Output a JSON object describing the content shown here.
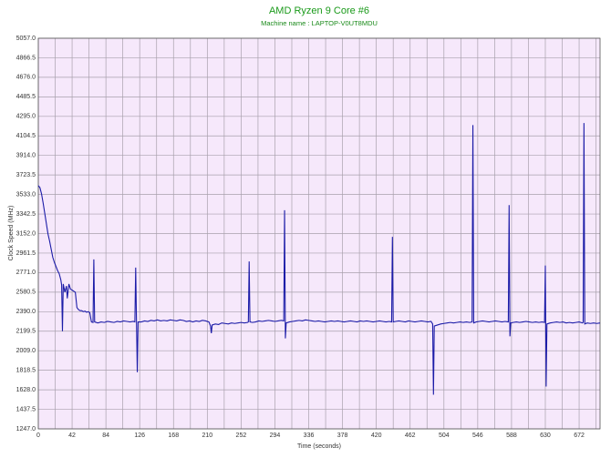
{
  "chart_data": {
    "type": "line",
    "title": "AMD Ryzen 9 Core #6",
    "subtitle": "Machine name : LAPTOP-V0UT8MDU",
    "y_label": "Clock Speed (MHz)",
    "x_label": "Time (seconds)",
    "xlim": [
      0,
      698
    ],
    "ylim": [
      1247,
      5057
    ],
    "xticks": [
      0,
      42,
      84,
      126,
      168,
      210,
      252,
      294,
      336,
      378,
      420,
      462,
      504,
      546,
      588,
      630,
      672
    ],
    "x_minor_grid": [
      21,
      63,
      105,
      147,
      189,
      231,
      273,
      315,
      357,
      399,
      441,
      483,
      525,
      567,
      609,
      651,
      693
    ],
    "yticks": [
      {
        "value": 1247,
        "label": "1247.0"
      },
      {
        "value": 1437.5,
        "label": "1437.5"
      },
      {
        "value": 1628,
        "label": "1628.0"
      },
      {
        "value": 1818.5,
        "label": "1818.5"
      },
      {
        "value": 2009,
        "label": "2009.0"
      },
      {
        "value": 2199.5,
        "label": "2199.5"
      },
      {
        "value": 2390,
        "label": "2390.0"
      },
      {
        "value": 2580.5,
        "label": "2580.5"
      },
      {
        "value": 2771,
        "label": "2771.0"
      },
      {
        "value": 2961.5,
        "label": "2961.5"
      },
      {
        "value": 3152,
        "label": "3152.0"
      },
      {
        "value": 3342.5,
        "label": "3342.5"
      },
      {
        "value": 3533,
        "label": "3533.0"
      },
      {
        "value": 3723.5,
        "label": "3723.5"
      },
      {
        "value": 3914,
        "label": "3914.0"
      },
      {
        "value": 4104.5,
        "label": "4104.5"
      },
      {
        "value": 4295,
        "label": "4295.0"
      },
      {
        "value": 4485.5,
        "label": "4485.5"
      },
      {
        "value": 4676,
        "label": "4676.0"
      },
      {
        "value": 4866.5,
        "label": "4866.5"
      },
      {
        "value": 5057,
        "label": "5057.0"
      }
    ],
    "grid": true,
    "x": [
      0,
      2,
      4,
      6,
      8,
      10,
      12,
      14,
      16,
      18,
      20,
      22,
      24,
      26,
      28,
      29,
      30,
      31,
      33,
      35,
      36,
      38,
      40,
      42,
      44,
      46,
      48,
      50,
      52,
      54,
      56,
      58,
      60,
      62,
      64,
      66,
      68,
      69,
      70,
      74,
      78,
      82,
      86,
      90,
      94,
      98,
      102,
      106,
      110,
      114,
      118,
      120,
      121,
      122,
      123,
      124,
      128,
      132,
      136,
      140,
      144,
      148,
      152,
      156,
      160,
      164,
      168,
      172,
      176,
      180,
      184,
      188,
      192,
      196,
      200,
      204,
      208,
      212,
      214,
      215,
      216,
      220,
      224,
      228,
      232,
      236,
      240,
      244,
      248,
      252,
      256,
      260,
      261,
      262,
      263,
      266,
      270,
      274,
      278,
      282,
      286,
      290,
      294,
      298,
      302,
      305,
      306,
      307,
      308,
      312,
      316,
      320,
      324,
      328,
      332,
      336,
      340,
      344,
      348,
      352,
      356,
      360,
      364,
      368,
      372,
      376,
      380,
      384,
      388,
      392,
      396,
      400,
      404,
      408,
      412,
      416,
      420,
      424,
      428,
      432,
      436,
      439,
      440,
      441,
      444,
      448,
      452,
      456,
      460,
      464,
      468,
      472,
      476,
      480,
      484,
      488,
      490,
      491,
      492,
      496,
      500,
      504,
      508,
      512,
      516,
      520,
      524,
      528,
      532,
      536,
      539,
      540,
      541,
      544,
      548,
      552,
      556,
      560,
      564,
      568,
      572,
      576,
      580,
      584,
      585,
      586,
      587,
      590,
      594,
      598,
      602,
      606,
      610,
      614,
      618,
      622,
      626,
      629,
      630,
      631,
      632,
      636,
      640,
      644,
      648,
      652,
      656,
      660,
      664,
      668,
      672,
      676,
      677,
      678,
      679,
      682,
      686,
      690,
      694,
      698
    ],
    "series": [
      {
        "name": "Core #6",
        "color": "#1c1ca8",
        "values": [
          3620,
          3600,
          3540,
          3450,
          3350,
          3250,
          3150,
          3080,
          3000,
          2920,
          2870,
          2830,
          2790,
          2760,
          2700,
          2650,
          2200,
          2660,
          2580,
          2640,
          2520,
          2660,
          2610,
          2600,
          2590,
          2580,
          2430,
          2410,
          2400,
          2400,
          2390,
          2395,
          2385,
          2390,
          2380,
          2290,
          2285,
          2900,
          2290,
          2280,
          2290,
          2285,
          2295,
          2290,
          2285,
          2295,
          2290,
          2300,
          2295,
          2290,
          2295,
          2290,
          2820,
          2290,
          1800,
          2290,
          2290,
          2300,
          2295,
          2305,
          2300,
          2310,
          2300,
          2305,
          2300,
          2310,
          2305,
          2300,
          2310,
          2305,
          2295,
          2300,
          2290,
          2300,
          2295,
          2305,
          2300,
          2290,
          2250,
          2180,
          2260,
          2270,
          2265,
          2280,
          2275,
          2270,
          2280,
          2275,
          2280,
          2285,
          2280,
          2285,
          2290,
          2880,
          2290,
          2285,
          2290,
          2300,
          2295,
          2300,
          2305,
          2300,
          2295,
          2300,
          2305,
          2300,
          3380,
          2130,
          2280,
          2290,
          2295,
          2300,
          2305,
          2300,
          2310,
          2305,
          2300,
          2295,
          2300,
          2295,
          2290,
          2295,
          2300,
          2295,
          2300,
          2295,
          2290,
          2295,
          2300,
          2295,
          2290,
          2300,
          2295,
          2300,
          2295,
          2290,
          2295,
          2300,
          2295,
          2290,
          2295,
          2290,
          3120,
          2290,
          2295,
          2300,
          2295,
          2290,
          2300,
          2295,
          2290,
          2295,
          2300,
          2295,
          2290,
          2295,
          2270,
          1580,
          2250,
          2260,
          2270,
          2275,
          2280,
          2285,
          2280,
          2285,
          2290,
          2285,
          2290,
          2285,
          2290,
          4210,
          2280,
          2290,
          2295,
          2300,
          2295,
          2290,
          2295,
          2300,
          2295,
          2290,
          2295,
          2290,
          3430,
          2150,
          2280,
          2285,
          2290,
          2285,
          2290,
          2295,
          2290,
          2285,
          2290,
          2285,
          2290,
          2285,
          2840,
          1660,
          2270,
          2280,
          2285,
          2290,
          2285,
          2290,
          2280,
          2285,
          2280,
          2285,
          2290,
          2280,
          2285,
          4230,
          2270,
          2280,
          2275,
          2280,
          2275,
          2280
        ]
      }
    ]
  }
}
